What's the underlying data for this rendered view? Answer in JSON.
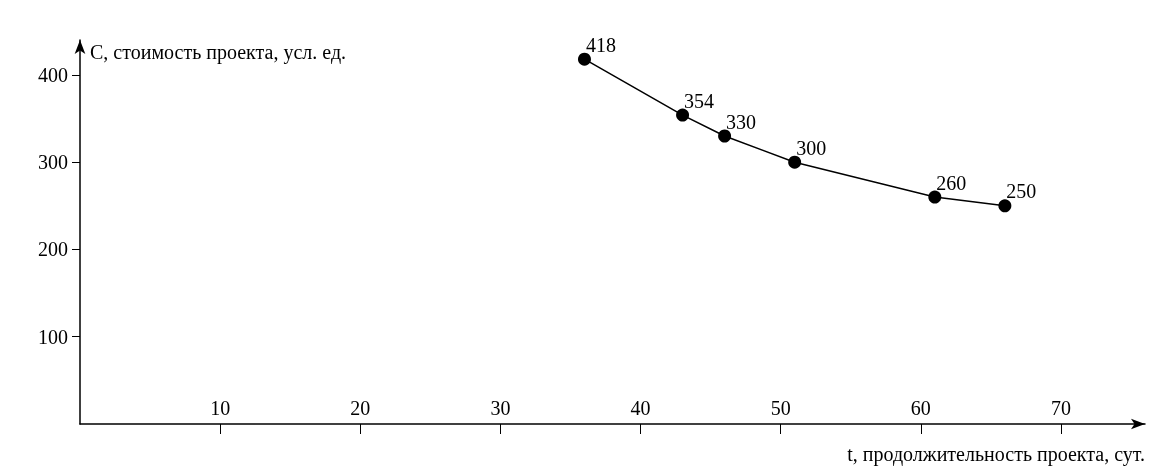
{
  "chart_data": {
    "type": "line",
    "xlabel": "t, продолжительность проекта, сут.",
    "ylabel": "C, стоимость проекта, усл. ед.",
    "x": [
      36,
      43,
      46,
      51,
      61,
      66
    ],
    "series": [
      {
        "color": "#000000",
        "values": [
          418,
          354,
          330,
          300,
          260,
          250
        ]
      }
    ],
    "xlim": [
      0,
      76
    ],
    "xticks": [
      10,
      20,
      30,
      40,
      50,
      60,
      70
    ],
    "ylim": [
      0,
      440
    ],
    "yticks": [
      100,
      200,
      300,
      400
    ],
    "data_labels": true,
    "marker": "circle",
    "line_style": "solid"
  }
}
